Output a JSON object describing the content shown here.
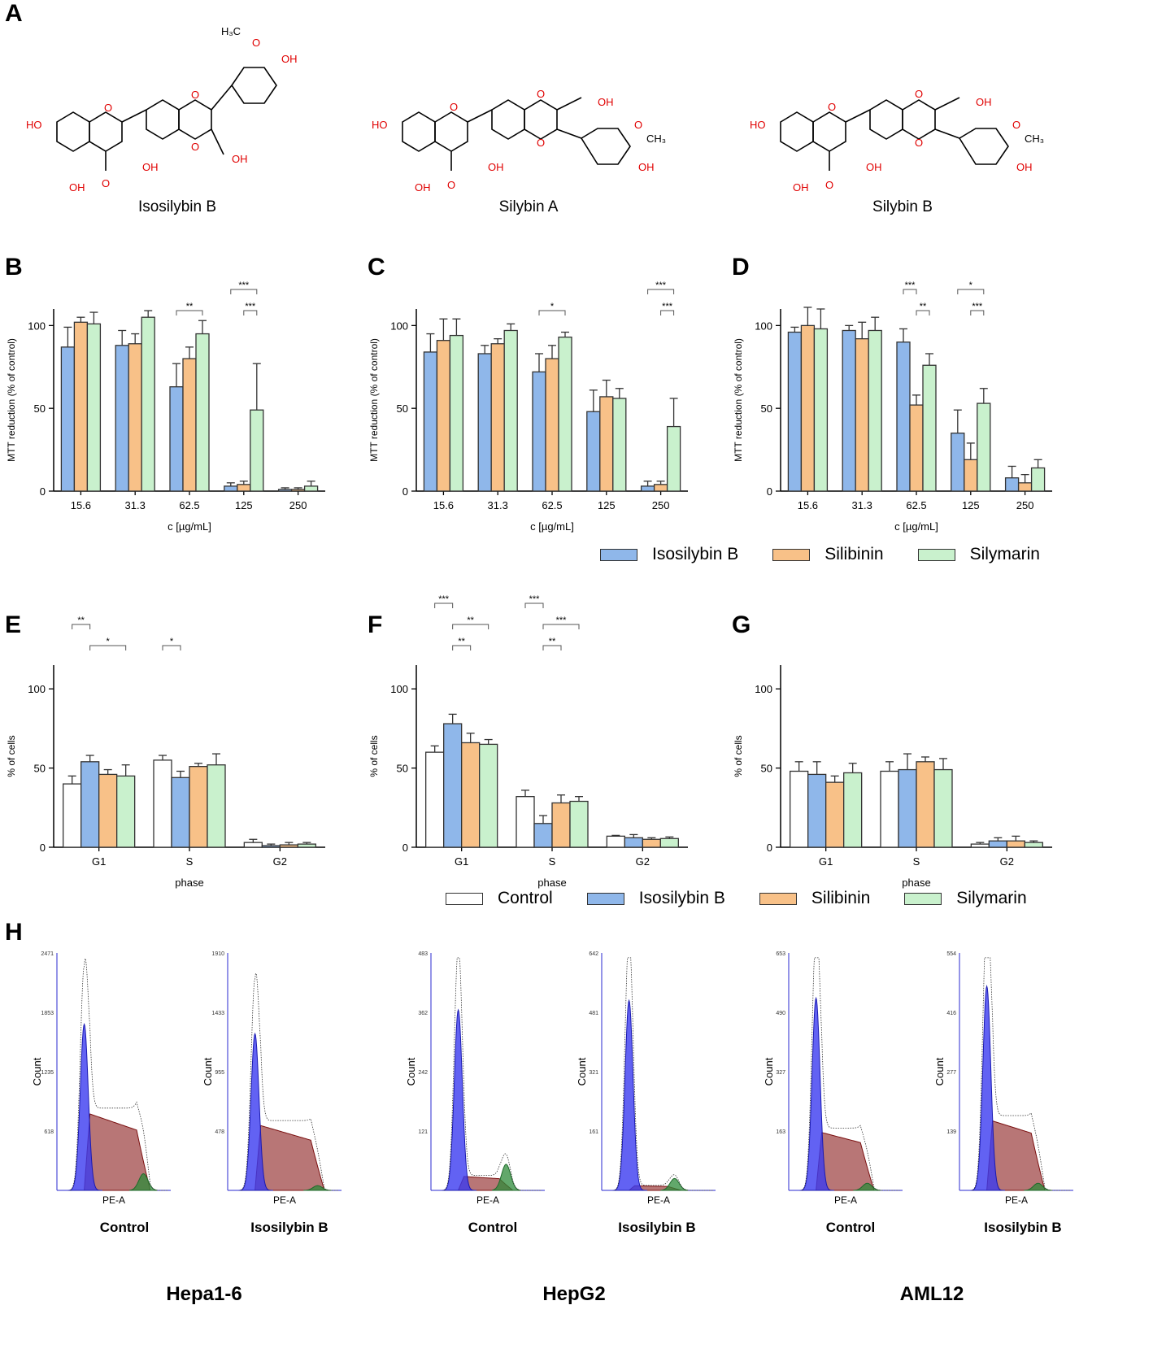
{
  "panel_letters": {
    "A": "A",
    "B": "B",
    "C": "C",
    "D": "D",
    "E": "E",
    "F": "F",
    "G": "G",
    "H": "H"
  },
  "molecules": [
    {
      "name": "Isosilybin B"
    },
    {
      "name": "Silybin A"
    },
    {
      "name": "Silybin B"
    }
  ],
  "legend_mtt": [
    {
      "label": "Isosilybin B",
      "color": "#8fb7ea"
    },
    {
      "label": "Silibinin",
      "color": "#f8c188"
    },
    {
      "label": "Silymarin",
      "color": "#c9f1cd"
    }
  ],
  "legend_cycle": [
    {
      "label": "Control",
      "color": "#ffffff"
    },
    {
      "label": "Isosilybin B",
      "color": "#8fb7ea"
    },
    {
      "label": "Silibinin",
      "color": "#f8c188"
    },
    {
      "label": "Silymarin",
      "color": "#c9f1cd"
    }
  ],
  "colors": {
    "control": "#ffffff",
    "isosilybin": "#8fb7ea",
    "silibinin": "#f8c188",
    "silymarin": "#c9f1cd",
    "g1": "#3b3bf0",
    "s": "#a04848",
    "g2": "#2e8b3a"
  },
  "chart_data": [
    {
      "id": "B",
      "type": "bar",
      "categories": [
        "15.6",
        "31.3",
        "62.5",
        "125",
        "250"
      ],
      "series": [
        {
          "name": "Isosilybin B",
          "values": [
            87,
            88,
            63,
            3,
            1
          ],
          "err": [
            12,
            9,
            14,
            2,
            1
          ]
        },
        {
          "name": "Silibinin",
          "values": [
            102,
            89,
            80,
            4,
            1
          ],
          "err": [
            3,
            6,
            7,
            2,
            1
          ]
        },
        {
          "name": "Silymarin",
          "values": [
            101,
            105,
            95,
            49,
            3
          ],
          "err": [
            7,
            4,
            8,
            28,
            3
          ]
        }
      ],
      "ylabel": "MTT reduction (% of control)",
      "xlabel": "c [µg/mL]",
      "ylim": [
        0,
        110
      ],
      "yticks": [
        0,
        50,
        100
      ],
      "significance": [
        {
          "label": "**",
          "cat": 2,
          "from": 0,
          "to": 2,
          "level": 0
        },
        {
          "label": "***",
          "cat": 3,
          "from": 0,
          "to": 2,
          "level": 1
        },
        {
          "label": "***",
          "cat": 3,
          "from": 1,
          "to": 2,
          "level": 0
        }
      ]
    },
    {
      "id": "C",
      "type": "bar",
      "categories": [
        "15.6",
        "31.3",
        "62.5",
        "125",
        "250"
      ],
      "series": [
        {
          "name": "Isosilybin B",
          "values": [
            84,
            83,
            72,
            48,
            3
          ],
          "err": [
            11,
            5,
            11,
            13,
            3
          ]
        },
        {
          "name": "Silibinin",
          "values": [
            91,
            89,
            80,
            57,
            4
          ],
          "err": [
            13,
            3,
            8,
            10,
            2
          ]
        },
        {
          "name": "Silymarin",
          "values": [
            94,
            97,
            93,
            56,
            39
          ],
          "err": [
            10,
            4,
            3,
            6,
            17
          ]
        }
      ],
      "ylabel": "MTT reduction (% of control)",
      "xlabel": "c [µg/mL]",
      "ylim": [
        0,
        110
      ],
      "yticks": [
        0,
        50,
        100
      ],
      "significance": [
        {
          "label": "*",
          "cat": 2,
          "from": 0,
          "to": 2,
          "level": 0
        },
        {
          "label": "***",
          "cat": 4,
          "from": 0,
          "to": 2,
          "level": 1
        },
        {
          "label": "***",
          "cat": 4,
          "from": 1,
          "to": 2,
          "level": 0
        }
      ]
    },
    {
      "id": "D",
      "type": "bar",
      "categories": [
        "15.6",
        "31.3",
        "62.5",
        "125",
        "250"
      ],
      "series": [
        {
          "name": "Isosilybin B",
          "values": [
            96,
            97,
            90,
            35,
            8
          ],
          "err": [
            3,
            3,
            8,
            14,
            7
          ]
        },
        {
          "name": "Silibinin",
          "values": [
            100,
            92,
            52,
            19,
            5
          ],
          "err": [
            11,
            10,
            6,
            10,
            5
          ]
        },
        {
          "name": "Silymarin",
          "values": [
            98,
            97,
            76,
            53,
            14
          ],
          "err": [
            12,
            8,
            7,
            9,
            5
          ]
        }
      ],
      "ylabel": "MTT reduction (% of control)",
      "xlabel": "c [µg/mL]",
      "ylim": [
        0,
        110
      ],
      "yticks": [
        0,
        50,
        100
      ],
      "significance": [
        {
          "label": "***",
          "cat": 2,
          "from": 0,
          "to": 1,
          "level": 1
        },
        {
          "label": "**",
          "cat": 2,
          "from": 1,
          "to": 2,
          "level": 0
        },
        {
          "label": "*",
          "cat": 3,
          "from": 0,
          "to": 2,
          "level": 1
        },
        {
          "label": "***",
          "cat": 3,
          "from": 1,
          "to": 2,
          "level": 0
        }
      ]
    },
    {
      "id": "E",
      "type": "bar",
      "categories": [
        "G1",
        "S",
        "G2"
      ],
      "series": [
        {
          "name": "Control",
          "values": [
            40,
            55,
            3
          ],
          "err": [
            5,
            3,
            2
          ]
        },
        {
          "name": "Isosilybin B",
          "values": [
            54,
            44,
            1
          ],
          "err": [
            4,
            4,
            1
          ]
        },
        {
          "name": "Silibinin",
          "values": [
            46,
            51,
            1.5
          ],
          "err": [
            3,
            2,
            1.5
          ]
        },
        {
          "name": "Silymarin",
          "values": [
            45,
            52,
            2
          ],
          "err": [
            7,
            7,
            1
          ]
        }
      ],
      "ylabel": "% of cells",
      "xlabel": "phase",
      "ylim": [
        0,
        115
      ],
      "yticks": [
        0,
        50,
        100
      ],
      "significance": [
        {
          "label": "**",
          "cat": 0,
          "from": 0,
          "to": 1,
          "level": 2
        },
        {
          "label": "*",
          "cat": 0,
          "from": 1,
          "to": 3,
          "level": 1
        },
        {
          "label": "*",
          "cat": 1,
          "from": 0,
          "to": 1,
          "level": 1
        }
      ]
    },
    {
      "id": "F",
      "type": "bar",
      "categories": [
        "G1",
        "S",
        "G2"
      ],
      "series": [
        {
          "name": "Control",
          "values": [
            60,
            32,
            7
          ],
          "err": [
            4,
            4,
            0.5
          ]
        },
        {
          "name": "Isosilybin B",
          "values": [
            78,
            15,
            6
          ],
          "err": [
            6,
            5,
            2
          ]
        },
        {
          "name": "Silibinin",
          "values": [
            66,
            28,
            5
          ],
          "err": [
            6,
            5,
            1
          ]
        },
        {
          "name": "Silymarin",
          "values": [
            65,
            29,
            5.5
          ],
          "err": [
            3,
            3,
            1
          ]
        }
      ],
      "ylabel": "% of cells",
      "xlabel": "phase",
      "ylim": [
        0,
        115
      ],
      "yticks": [
        0,
        50,
        100
      ],
      "significance": [
        {
          "label": "***",
          "cat": 0,
          "from": 0,
          "to": 1,
          "level": 3
        },
        {
          "label": "**",
          "cat": 0,
          "from": 1,
          "to": 3,
          "level": 2
        },
        {
          "label": "**",
          "cat": 0,
          "from": 1,
          "to": 2,
          "level": 1
        },
        {
          "label": "***",
          "cat": 1,
          "from": 0,
          "to": 1,
          "level": 3
        },
        {
          "label": "***",
          "cat": 1,
          "from": 1,
          "to": 3,
          "level": 2
        },
        {
          "label": "**",
          "cat": 1,
          "from": 1,
          "to": 2,
          "level": 1
        }
      ]
    },
    {
      "id": "G",
      "type": "bar",
      "categories": [
        "G1",
        "S",
        "G2"
      ],
      "series": [
        {
          "name": "Control",
          "values": [
            48,
            48,
            2
          ],
          "err": [
            6,
            6,
            1
          ]
        },
        {
          "name": "Isosilybin B",
          "values": [
            46,
            49,
            4
          ],
          "err": [
            8,
            10,
            2
          ]
        },
        {
          "name": "Silibinin",
          "values": [
            41,
            54,
            4
          ],
          "err": [
            4,
            3,
            3
          ]
        },
        {
          "name": "Silymarin",
          "values": [
            47,
            49,
            3
          ],
          "err": [
            6,
            7,
            1
          ]
        }
      ],
      "ylabel": "% of cells",
      "xlabel": "phase",
      "ylim": [
        0,
        115
      ],
      "yticks": [
        0,
        50,
        100
      ],
      "significance": []
    }
  ],
  "flow_histograms": [
    {
      "cell_line": "Hepa1-6",
      "condition": "Control",
      "ymax": "2471",
      "yticks": [
        "2471",
        "1853",
        "1235",
        "618"
      ],
      "ylabel": "Count",
      "xlabel": "PE-A",
      "g1_height": 0.7,
      "s_height": 0.33,
      "g2_height": 0.07,
      "s_end": 0.82
    },
    {
      "cell_line": "Hepa1-6",
      "condition": "Isosilybin B",
      "ymax": "1910",
      "yticks": [
        "1910",
        "1433",
        "955",
        "478"
      ],
      "ylabel": "Count",
      "xlabel": "PE-A",
      "g1_height": 0.66,
      "s_height": 0.28,
      "g2_height": 0.02,
      "s_end": 0.85
    },
    {
      "cell_line": "HepG2",
      "condition": "Control",
      "ymax": "483",
      "yticks": [
        "483",
        "362",
        "242",
        "121"
      ],
      "ylabel": "Count",
      "xlabel": "PE-A",
      "g1_height": 0.76,
      "s_height": 0.06,
      "g2_height": 0.11,
      "s_end": 0.72
    },
    {
      "cell_line": "HepG2",
      "condition": "Isosilybin B",
      "ymax": "642",
      "yticks": [
        "642",
        "481",
        "321",
        "161"
      ],
      "ylabel": "Count",
      "xlabel": "PE-A",
      "g1_height": 0.8,
      "s_height": 0.02,
      "g2_height": 0.05,
      "s_end": 0.7
    },
    {
      "cell_line": "AML12",
      "condition": "Control",
      "ymax": "653",
      "yticks": [
        "653",
        "490",
        "327",
        "163"
      ],
      "ylabel": "Count",
      "xlabel": "PE-A",
      "g1_height": 0.81,
      "s_height": 0.25,
      "g2_height": 0.03,
      "s_end": 0.75
    },
    {
      "cell_line": "AML12",
      "condition": "Isosilybin B",
      "ymax": "554",
      "yticks": [
        "554",
        "416",
        "277",
        "139"
      ],
      "ylabel": "Count",
      "xlabel": "PE-A",
      "g1_height": 0.86,
      "s_height": 0.3,
      "g2_height": 0.03,
      "s_end": 0.75
    }
  ],
  "cell_lines": [
    "Hepa1-6",
    "HepG2",
    "AML12"
  ]
}
